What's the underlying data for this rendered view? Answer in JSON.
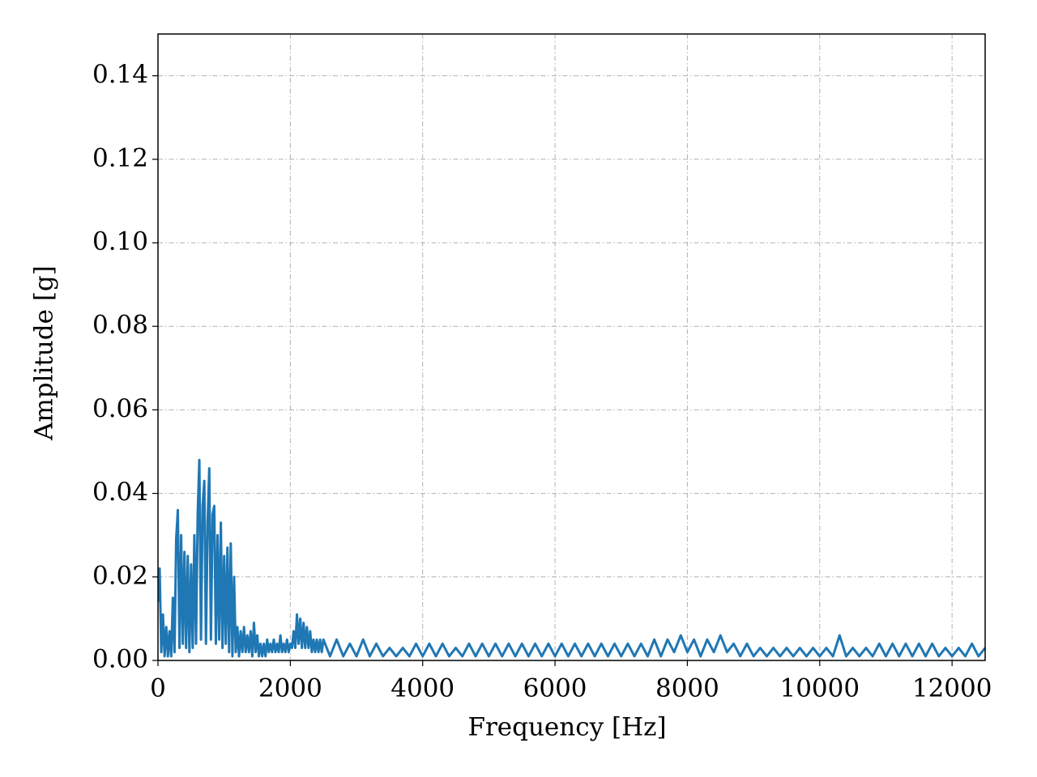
{
  "chart_data": {
    "type": "line",
    "xlabel": "Frequency [Hz]",
    "ylabel": "Amplitude [g]",
    "color": "#1f77b4",
    "grid": true,
    "xlim": [
      0,
      12500
    ],
    "xticks": [
      0,
      2000,
      4000,
      6000,
      8000,
      10000,
      12000
    ],
    "ylim": [
      0,
      0.15
    ],
    "yticks": [
      {
        "value": 0,
        "label": "0.00"
      },
      {
        "value": 0.02,
        "label": "0.02"
      },
      {
        "value": 0.04,
        "label": "0.04"
      },
      {
        "value": 0.06,
        "label": "0.06"
      },
      {
        "value": 0.08,
        "label": "0.08"
      },
      {
        "value": 0.1,
        "label": "0.10"
      },
      {
        "value": 0.12,
        "label": "0.12"
      },
      {
        "value": 0.14,
        "label": "0.14"
      }
    ],
    "x": [
      0,
      25,
      50,
      75,
      100,
      125,
      150,
      175,
      200,
      225,
      250,
      275,
      300,
      325,
      350,
      375,
      400,
      425,
      450,
      475,
      500,
      525,
      550,
      575,
      600,
      625,
      650,
      675,
      700,
      725,
      750,
      775,
      800,
      825,
      850,
      875,
      900,
      925,
      950,
      975,
      1000,
      1025,
      1050,
      1075,
      1100,
      1125,
      1150,
      1175,
      1200,
      1225,
      1250,
      1275,
      1300,
      1325,
      1350,
      1375,
      1400,
      1425,
      1450,
      1475,
      1500,
      1525,
      1550,
      1575,
      1600,
      1625,
      1650,
      1675,
      1700,
      1725,
      1750,
      1775,
      1800,
      1825,
      1850,
      1875,
      1900,
      1925,
      1950,
      1975,
      2000,
      2025,
      2050,
      2075,
      2100,
      2125,
      2150,
      2175,
      2200,
      2225,
      2250,
      2275,
      2300,
      2325,
      2350,
      2375,
      2400,
      2425,
      2450,
      2475,
      2500,
      2600,
      2700,
      2800,
      2900,
      3000,
      3100,
      3200,
      3300,
      3400,
      3500,
      3600,
      3700,
      3800,
      3900,
      4000,
      4100,
      4200,
      4300,
      4400,
      4500,
      4600,
      4700,
      4800,
      4900,
      5000,
      5100,
      5200,
      5300,
      5400,
      5500,
      5600,
      5700,
      5800,
      5900,
      6000,
      6100,
      6200,
      6300,
      6400,
      6500,
      6600,
      6700,
      6800,
      6900,
      7000,
      7100,
      7200,
      7300,
      7400,
      7500,
      7600,
      7700,
      7800,
      7900,
      8000,
      8100,
      8200,
      8300,
      8400,
      8500,
      8600,
      8700,
      8800,
      8900,
      9000,
      9100,
      9200,
      9300,
      9400,
      9500,
      9600,
      9700,
      9800,
      9900,
      10000,
      10100,
      10200,
      10300,
      10400,
      10500,
      10600,
      10700,
      10800,
      10900,
      11000,
      11100,
      11200,
      11300,
      11400,
      11500,
      11600,
      11700,
      11800,
      11900,
      12000,
      12100,
      12200,
      12300,
      12400,
      12500
    ],
    "values": [
      0.014,
      0.022,
      0.002,
      0.011,
      0.001,
      0.008,
      0.001,
      0.007,
      0.001,
      0.015,
      0.002,
      0.029,
      0.036,
      0.003,
      0.03,
      0.004,
      0.026,
      0.003,
      0.025,
      0.002,
      0.023,
      0.003,
      0.03,
      0.004,
      0.035,
      0.048,
      0.005,
      0.037,
      0.043,
      0.004,
      0.033,
      0.046,
      0.005,
      0.035,
      0.037,
      0.004,
      0.03,
      0.005,
      0.033,
      0.003,
      0.025,
      0.004,
      0.027,
      0.002,
      0.028,
      0.001,
      0.02,
      0.002,
      0.008,
      0.001,
      0.007,
      0.002,
      0.008,
      0.002,
      0.006,
      0.002,
      0.007,
      0.001,
      0.009,
      0.002,
      0.006,
      0.001,
      0.004,
      0.001,
      0.004,
      0.001,
      0.005,
      0.002,
      0.004,
      0.002,
      0.005,
      0.002,
      0.004,
      0.002,
      0.006,
      0.002,
      0.004,
      0.002,
      0.005,
      0.002,
      0.004,
      0.003,
      0.007,
      0.003,
      0.011,
      0.004,
      0.01,
      0.003,
      0.009,
      0.003,
      0.008,
      0.003,
      0.007,
      0.002,
      0.005,
      0.002,
      0.005,
      0.002,
      0.005,
      0.002,
      0.005,
      0.001,
      0.005,
      0.001,
      0.004,
      0.001,
      0.005,
      0.001,
      0.004,
      0.001,
      0.003,
      0.001,
      0.003,
      0.001,
      0.004,
      0.001,
      0.004,
      0.001,
      0.004,
      0.001,
      0.003,
      0.001,
      0.004,
      0.001,
      0.004,
      0.001,
      0.004,
      0.001,
      0.004,
      0.001,
      0.004,
      0.001,
      0.004,
      0.001,
      0.004,
      0.001,
      0.004,
      0.001,
      0.004,
      0.001,
      0.004,
      0.001,
      0.004,
      0.001,
      0.004,
      0.001,
      0.004,
      0.001,
      0.004,
      0.001,
      0.005,
      0.001,
      0.005,
      0.002,
      0.006,
      0.002,
      0.005,
      0.001,
      0.005,
      0.002,
      0.006,
      0.002,
      0.004,
      0.001,
      0.004,
      0.001,
      0.003,
      0.001,
      0.003,
      0.001,
      0.003,
      0.001,
      0.003,
      0.001,
      0.003,
      0.001,
      0.003,
      0.001,
      0.006,
      0.001,
      0.003,
      0.001,
      0.003,
      0.001,
      0.004,
      0.001,
      0.004,
      0.001,
      0.004,
      0.001,
      0.004,
      0.001,
      0.004,
      0.001,
      0.003,
      0.001,
      0.003,
      0.001,
      0.004,
      0.001,
      0.003
    ]
  }
}
